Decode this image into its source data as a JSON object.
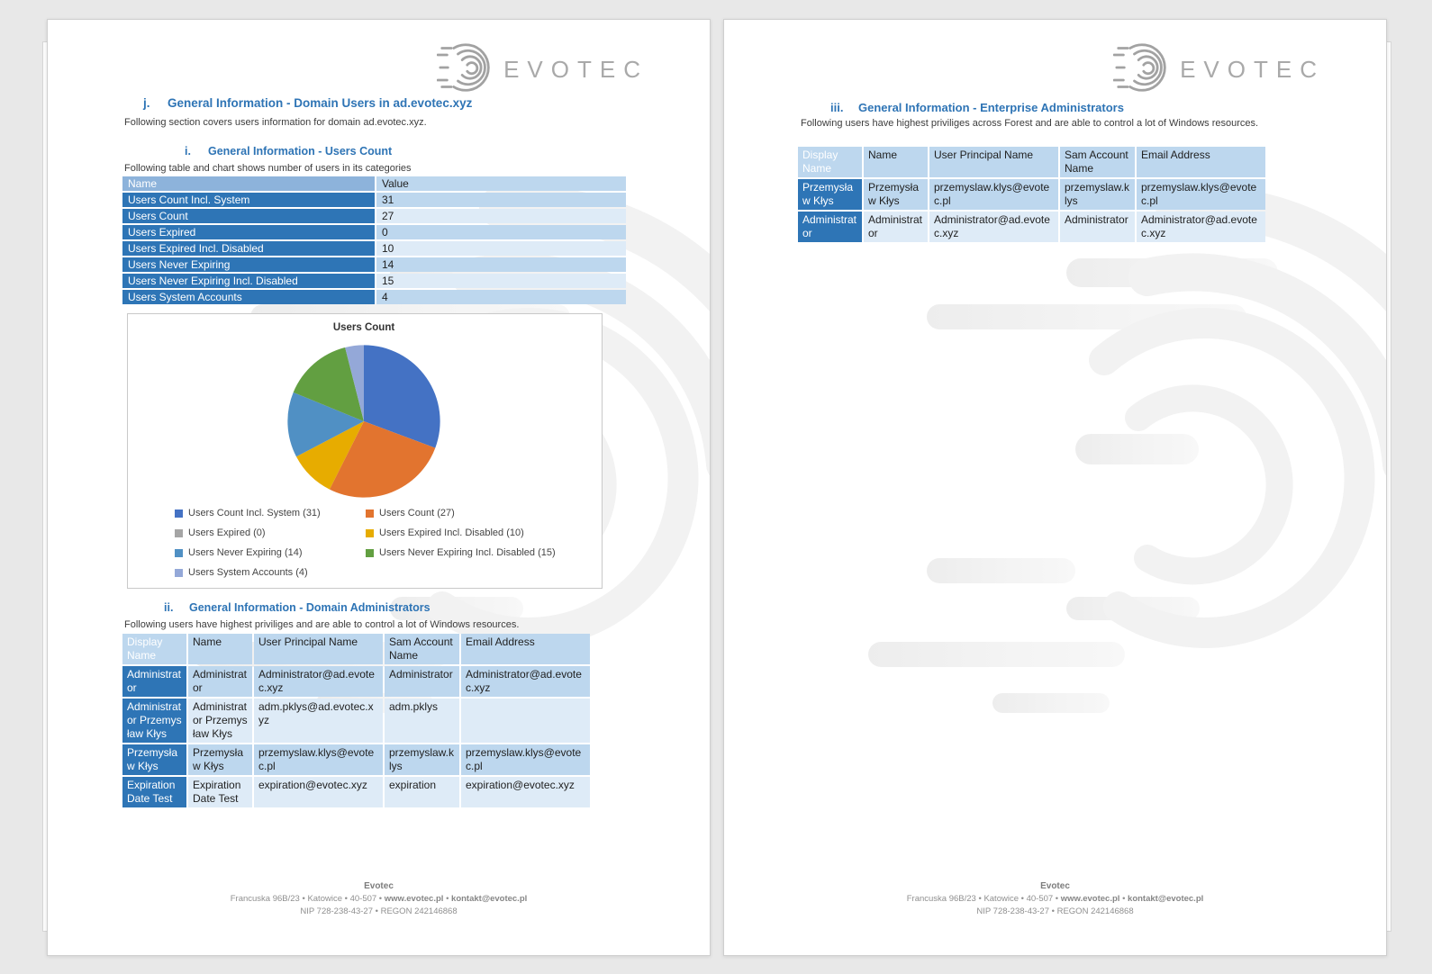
{
  "brand": {
    "logo_text": "EVOTEC",
    "logo_color": "#a9a9a9"
  },
  "colors": {
    "heading_blue": "#2E74B5",
    "table_dark_blue": "#2E75B6",
    "table_light_blue": "#BDD7EE",
    "table_lighter_blue": "#DEEBF7",
    "table_header_medium_blue": "#8DB3DB"
  },
  "page1": {
    "heading": {
      "num": "j.",
      "title": "General Information - Domain Users in ad.evotec.xyz"
    },
    "intro": "Following section covers users information for domain ad.evotec.xyz.",
    "sub1": {
      "num": "i.",
      "title": "General Information - Users Count"
    },
    "sub1_intro": "Following table and chart shows number of users in its categories",
    "users_table": {
      "headers": [
        "Name",
        "Value"
      ],
      "rows": [
        [
          "Users Count Incl. System",
          "31"
        ],
        [
          "Users Count",
          "27"
        ],
        [
          "Users Expired",
          "0"
        ],
        [
          "Users Expired Incl. Disabled",
          "10"
        ],
        [
          "Users Never Expiring",
          "14"
        ],
        [
          "Users Never Expiring Incl. Disabled",
          "15"
        ],
        [
          "Users System Accounts",
          "4"
        ]
      ]
    },
    "sub2": {
      "num": "ii.",
      "title": "General Information - Domain Administrators"
    },
    "sub2_intro": "Following users have highest priviliges and are able to control a lot of Windows resources.",
    "admin_table": {
      "headers": [
        "Display Name",
        "Name",
        "User Principal Name",
        "Sam Account Name",
        "Email Address"
      ],
      "rows": [
        [
          "Administrator",
          "Administrator",
          "Administrator@ad.evotec.xyz",
          "Administrator",
          "Administrator@ad.evotec.xyz"
        ],
        [
          "Administrator Przemysław Kłys",
          "Administrator Przemysław Kłys",
          "adm.pklys@ad.evotec.xyz",
          "adm.pklys",
          ""
        ],
        [
          "Przemysław Kłys",
          "Przemysław Kłys",
          "przemyslaw.klys@evotec.pl",
          "przemyslaw.klys",
          "przemyslaw.klys@evotec.pl"
        ],
        [
          "Expiration Date Test",
          "Expiration Date Test",
          "expiration@evotec.xyz",
          "expiration",
          "expiration@evotec.xyz"
        ]
      ]
    }
  },
  "page2": {
    "heading": {
      "num": "iii.",
      "title": "General Information - Enterprise Administrators"
    },
    "intro": "Following users have highest priviliges across Forest and are able to control a lot of Windows resources.",
    "ea_table": {
      "headers": [
        "Display Name",
        "Name",
        "User Principal Name",
        "Sam Account Name",
        "Email Address"
      ],
      "rows": [
        [
          "Przemysław Kłys",
          "Przemysław Kłys",
          "przemyslaw.klys@evotec.pl",
          "przemyslaw.klys",
          "przemyslaw.klys@evotec.pl"
        ],
        [
          "Administrator",
          "Administrator",
          "Administrator@ad.evotec.xyz",
          "Administrator",
          "Administrator@ad.evotec.xyz"
        ]
      ]
    }
  },
  "footer": {
    "company": "Evotec",
    "address_pre": "Francuska 96B/23 • Katowice • 40-507 •",
    "web": "www.evotec.pl",
    "sep": "•",
    "email": "kontakt@evotec.pl",
    "nip_regon": "NIP 728-238-43-27 • REGON 242146868"
  },
  "chart_data": {
    "type": "pie",
    "title": "Users Count",
    "labels": [
      "Users Count Incl. System",
      "Users Count",
      "Users Expired",
      "Users Expired Incl. Disabled",
      "Users Never Expiring",
      "Users Never Expiring Incl. Disabled",
      "Users System Accounts"
    ],
    "values": [
      31,
      27,
      0,
      10,
      14,
      15,
      4
    ],
    "colors": [
      "#4472C4",
      "#E2742F",
      "#A5A5A5",
      "#E7AC00",
      "#5090C4",
      "#629F41",
      "#94A8D8"
    ],
    "legend_position": "bottom",
    "start_angle_deg": -90,
    "direction": "clockwise"
  }
}
